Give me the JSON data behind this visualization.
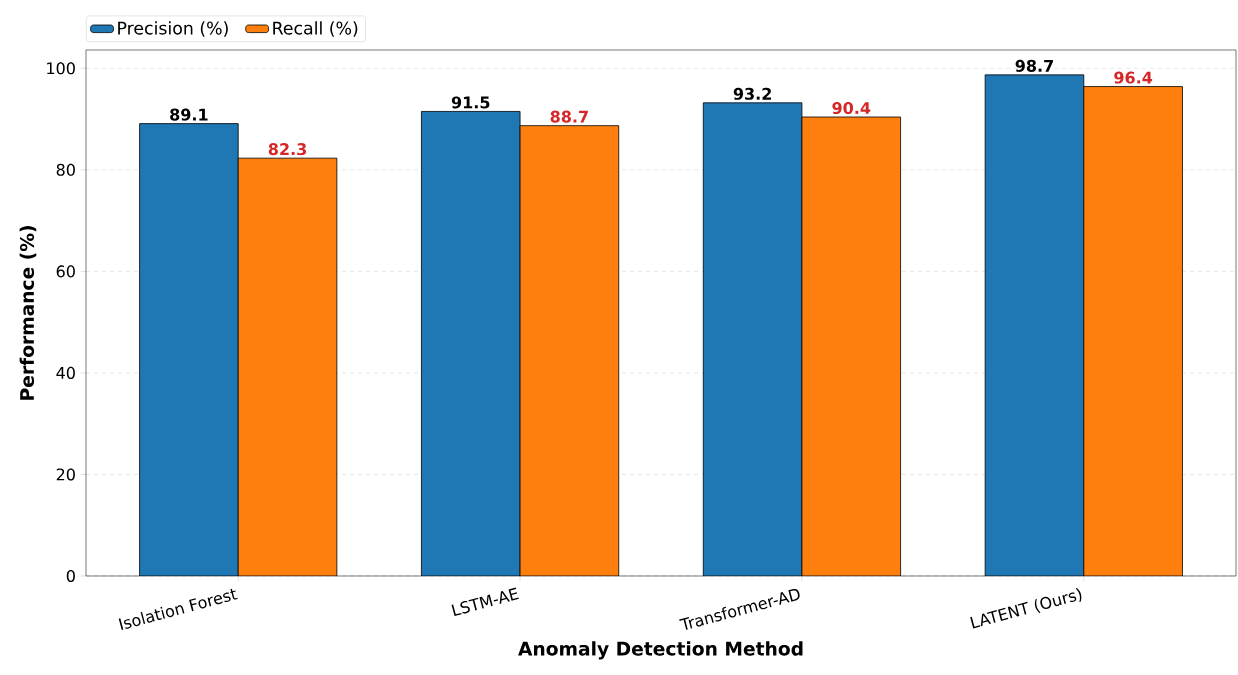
{
  "chart_data": {
    "type": "bar",
    "xlabel": "Anomaly Detection Method",
    "ylabel": "Performance (%)",
    "categories": [
      "Isolation Forest",
      "LSTM-AE",
      "Transformer-AD",
      "LATENT (Ours)"
    ],
    "series": [
      {
        "name": "Precision (%)",
        "color": "#1f77b4",
        "values": [
          89.1,
          91.5,
          93.2,
          98.7
        ]
      },
      {
        "name": "Recall (%)",
        "color": "#ff7f0e",
        "values": [
          82.3,
          88.7,
          90.4,
          96.4
        ]
      }
    ],
    "ylim": [
      0,
      103.6
    ],
    "yticks": [
      0,
      20,
      40,
      60,
      80,
      100
    ],
    "grid": "y",
    "legend": "top left",
    "data_labels": true
  }
}
